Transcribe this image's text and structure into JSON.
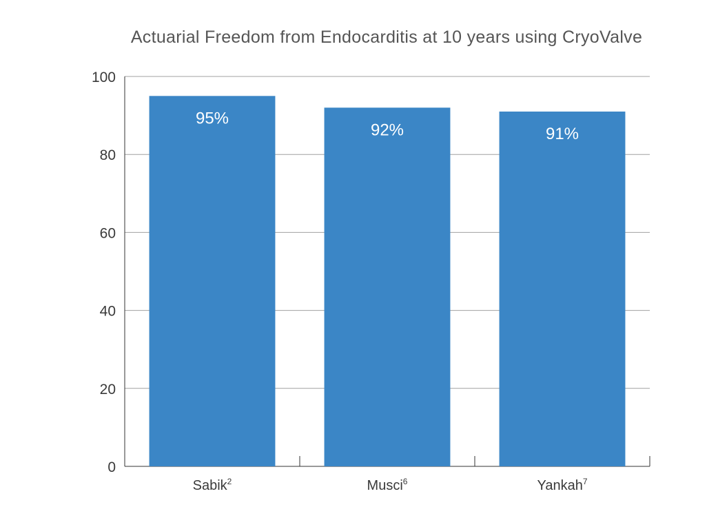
{
  "chart_data": {
    "type": "bar",
    "title": "Actuarial Freedom from Endocarditis at 10 years using CryoValve",
    "categories": [
      {
        "name": "Sabik",
        "sup": "2"
      },
      {
        "name": "Musci",
        "sup": "6"
      },
      {
        "name": "Yankah",
        "sup": "7"
      }
    ],
    "values": [
      95,
      92,
      91
    ],
    "value_labels": [
      "95%",
      "92%",
      "91%"
    ],
    "ylim": [
      0,
      100
    ],
    "yticks": [
      0,
      20,
      40,
      60,
      80,
      100
    ],
    "grid": true,
    "bar_color": "#3b86c6",
    "grid_color": "#a0a0a0",
    "axis_color": "#333333"
  }
}
